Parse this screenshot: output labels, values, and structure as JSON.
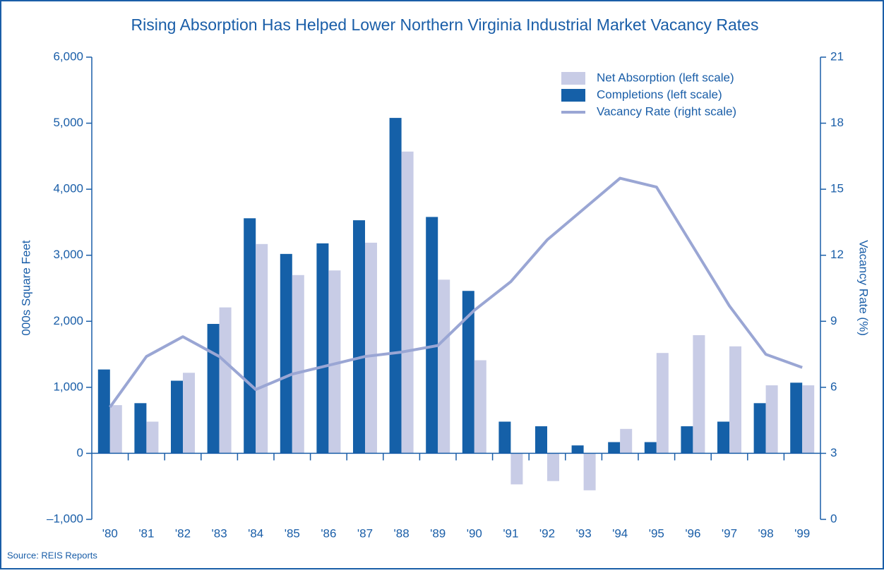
{
  "chart_data": {
    "type": "bar",
    "title": "Rising Absorption Has Helped Lower Northern Virginia Industrial Market Vacancy Rates",
    "source": "Source: REIS Reports",
    "ylabel": "000s Square Feet",
    "y2label": "Vacancy Rate (%)",
    "categories": [
      "'80",
      "'81",
      "'82",
      "'83",
      "'84",
      "'85",
      "'86",
      "'87",
      "'88",
      "'89",
      "'90",
      "'91",
      "'92",
      "'93",
      "'94",
      "'95",
      "'96",
      "'97",
      "'98",
      "'99"
    ],
    "series": [
      {
        "name": "Net Absorption (left scale)",
        "type": "bar",
        "color": "#c8cce6",
        "values": [
          730,
          480,
          1220,
          2210,
          3170,
          2700,
          2770,
          3190,
          4570,
          2630,
          1410,
          -470,
          -420,
          -560,
          370,
          1520,
          1790,
          1620,
          1030,
          1030
        ]
      },
      {
        "name": "Completions (left scale)",
        "type": "bar",
        "color": "#1560a8",
        "values": [
          1270,
          760,
          1100,
          1960,
          3560,
          3020,
          3180,
          3530,
          5080,
          3580,
          2460,
          480,
          410,
          120,
          170,
          170,
          410,
          480,
          760,
          1070
        ]
      },
      {
        "name": "Vacancy Rate (right scale)",
        "type": "line",
        "axis": "y2",
        "color": "#9aa6d4",
        "values": [
          5.1,
          7.4,
          8.3,
          7.4,
          5.9,
          6.6,
          7.0,
          7.4,
          7.6,
          7.9,
          9.5,
          10.8,
          12.7,
          14.1,
          15.5,
          15.1,
          12.4,
          9.7,
          7.5,
          6.9
        ]
      }
    ],
    "ylim": [
      -1000,
      6000
    ],
    "yticks": [
      {
        "value": -1000,
        "label": "–1,000"
      },
      0,
      {
        "value": 1000,
        "label": "1,000"
      },
      {
        "value": 2000,
        "label": "2,000"
      },
      {
        "value": 3000,
        "label": "3,000"
      },
      {
        "value": 4000,
        "label": "4,000"
      },
      {
        "value": 5000,
        "label": "5,000"
      },
      {
        "value": 6000,
        "label": "6,000"
      }
    ],
    "y2lim": [
      0,
      21
    ],
    "y2ticks": [
      0,
      3,
      6,
      9,
      12,
      15,
      18,
      21
    ],
    "legend": "upper right"
  }
}
